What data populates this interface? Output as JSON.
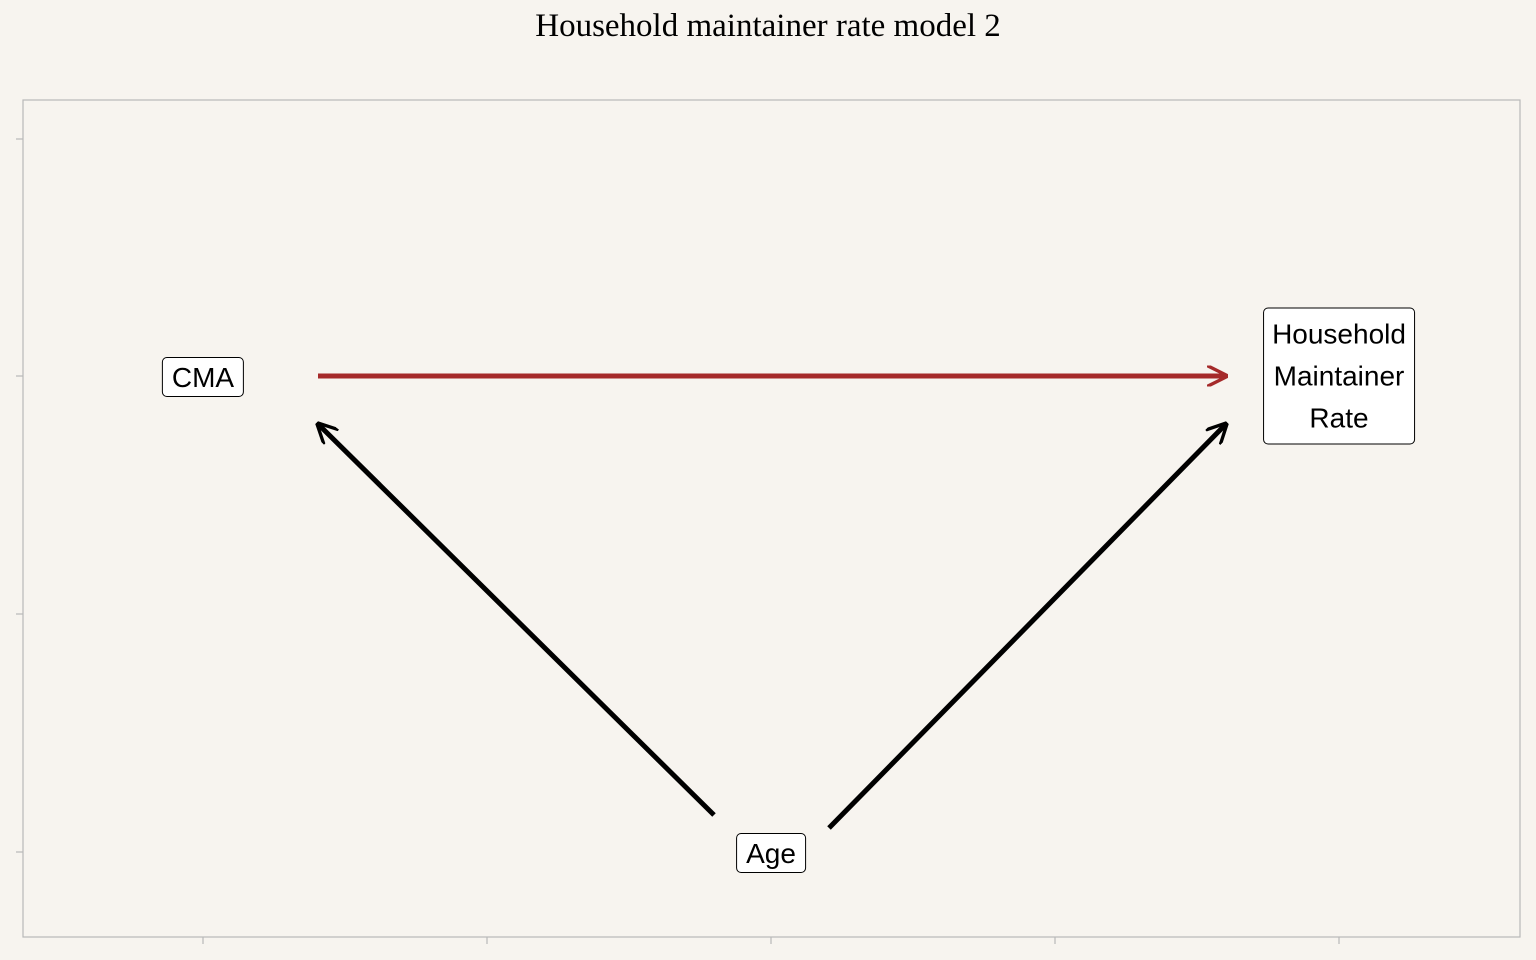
{
  "title": "Household maintainer rate model 2",
  "nodes": {
    "cma": {
      "label": "CMA"
    },
    "age": {
      "label": "Age"
    },
    "outcome": {
      "lines": [
        "Household",
        "Maintainer",
        "Rate"
      ]
    }
  },
  "edges": [
    {
      "from": "CMA",
      "to": "Household Maintainer Rate",
      "color": "#a52a2a"
    },
    {
      "from": "Age",
      "to": "CMA",
      "color": "#000000"
    },
    {
      "from": "Age",
      "to": "Household Maintainer Rate",
      "color": "#000000"
    }
  ],
  "colors": {
    "background": "#f7f4ef",
    "highlight_edge": "#a52a2a",
    "edge": "#000000",
    "frame": "#b8b8b8"
  }
}
